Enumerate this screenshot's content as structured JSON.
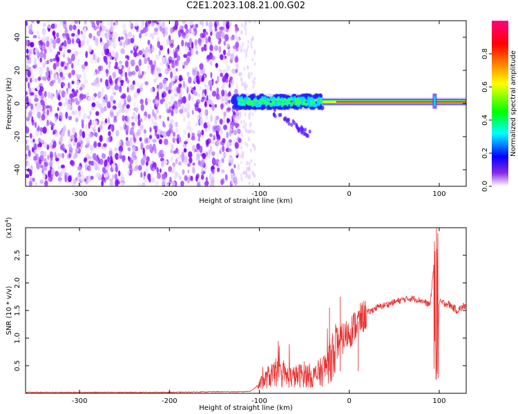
{
  "title": "C2E1.2023.108.21.00.G02",
  "chart_data": [
    {
      "type": "heatmap",
      "xlabel": "Height of straight line (km)",
      "ylabel": "Frequency (Hz)",
      "xlim": [
        -360,
        130
      ],
      "ylim": [
        -50,
        50
      ],
      "xticks": [
        -300,
        -200,
        -100,
        0,
        100
      ],
      "yticks": [
        -40,
        -20,
        0,
        20,
        40
      ],
      "colorbar": {
        "label": "Normalized spectral amplitude",
        "range": [
          0.0,
          1.0
        ],
        "ticks": [
          0.0,
          0.2,
          0.4,
          0.6,
          0.8
        ],
        "tick_labels": [
          "0.0",
          "0.2",
          "0.4",
          "0.6",
          "0.8"
        ],
        "colormap": [
          "#ffffff",
          "#7a00ff",
          "#0000ff",
          "#00ffff",
          "#00ff00",
          "#ffff00",
          "#ff8000",
          "#ff0000",
          "#ff00a0"
        ]
      },
      "regions": [
        {
          "x_range": [
            -360,
            -120
          ],
          "y_range": [
            -50,
            50
          ],
          "amplitude": 0.1,
          "description": "noise"
        },
        {
          "x_range": [
            -130,
            -30
          ],
          "y_range": [
            -5,
            7
          ],
          "amplitude": 0.45,
          "center_y": 1
        },
        {
          "x_range": [
            -30,
            130
          ],
          "y_range": [
            -1,
            3
          ],
          "amplitude": 0.9,
          "center_y": 1
        }
      ]
    },
    {
      "type": "line",
      "xlabel": "Height of straight line (km)",
      "ylabel": "SNR (10 * v/v)",
      "y_multiplier": "(x10",
      "y_multiplier_exp": "4",
      "y_multiplier_close": ")",
      "xlim": [
        -360,
        130
      ],
      "ylim": [
        0,
        3.0
      ],
      "xticks": [
        -300,
        -200,
        -100,
        0,
        100
      ],
      "yticks": [
        0.5,
        1.0,
        1.5,
        2.0,
        2.5
      ],
      "ytick_labels": [
        "0.5",
        "1.0",
        "1.5",
        "2.0",
        "2.5"
      ],
      "color": "#e83030",
      "series": [
        {
          "x": [
            -360,
            -300,
            -200,
            -150,
            -120,
            -110,
            -100,
            -90,
            -80,
            -70,
            -60,
            -50,
            -40,
            -30,
            -20,
            -15,
            -10,
            0,
            10,
            20,
            30,
            40,
            50,
            60,
            70,
            80,
            90,
            95,
            97,
            100,
            110,
            120,
            130
          ],
          "y": [
            0.01,
            0.01,
            0.01,
            0.02,
            0.02,
            0.03,
            0.15,
            0.3,
            0.35,
            0.3,
            0.3,
            0.35,
            0.3,
            0.4,
            0.65,
            0.9,
            0.95,
            1.1,
            1.3,
            1.45,
            1.55,
            1.6,
            1.65,
            1.7,
            1.72,
            1.68,
            1.6,
            2.5,
            0.2,
            1.65,
            1.62,
            1.5,
            1.6
          ]
        }
      ]
    }
  ]
}
